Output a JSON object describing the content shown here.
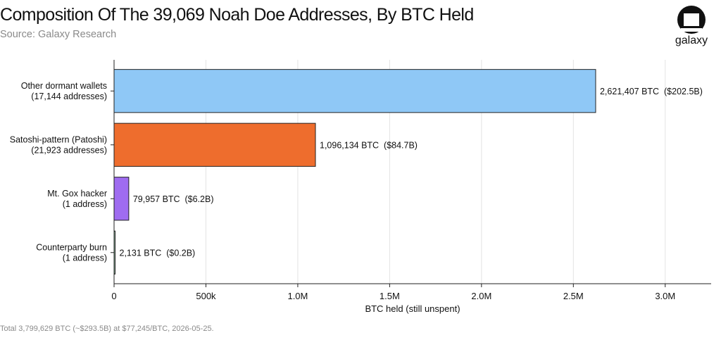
{
  "header": {
    "title": "Composition Of The 39,069 Noah Doe Addresses, By BTC Held",
    "source": "Source: Galaxy Research"
  },
  "brand": {
    "name": "galaxy",
    "logo_icon": "galaxy-logo-icon"
  },
  "footer": {
    "note": "Total 3,799,629 BTC (~$293.5B) at $77,245/BTC, 2026-05-25."
  },
  "chart_data": {
    "type": "bar",
    "orientation": "horizontal",
    "title": "Composition Of The 39,069 Noah Doe Addresses, By BTC Held",
    "xlabel": "BTC held (still unspent)",
    "ylabel": "",
    "xlim": [
      0,
      3250000
    ],
    "xticks": [
      0,
      500000,
      1000000,
      1500000,
      2000000,
      2500000,
      3000000
    ],
    "xtick_labels": [
      "0",
      "500k",
      "1.0M",
      "1.5M",
      "2.0M",
      "2.5M",
      "3.0M"
    ],
    "grid": "vertical",
    "categories": [
      [
        "Other dormant wallets",
        "(17,144 addresses)"
      ],
      [
        "Satoshi-pattern (Patoshi)",
        "(21,923 addresses)"
      ],
      [
        "Mt. Gox hacker",
        "(1 address)"
      ],
      [
        "Counterparty burn",
        "(1 address)"
      ]
    ],
    "values": [
      2621407,
      1096134,
      79957,
      2131
    ],
    "value_labels": [
      "2,621,407 BTC  ($202.5B)",
      "1,096,134 BTC  ($84.7B)",
      "79,957 BTC  ($6.2B)",
      "2,131 BTC  ($0.2B)"
    ],
    "colors": [
      "#8fc8f6",
      "#ee6d2d",
      "#9f6cf0",
      "#9fd3b0"
    ]
  }
}
